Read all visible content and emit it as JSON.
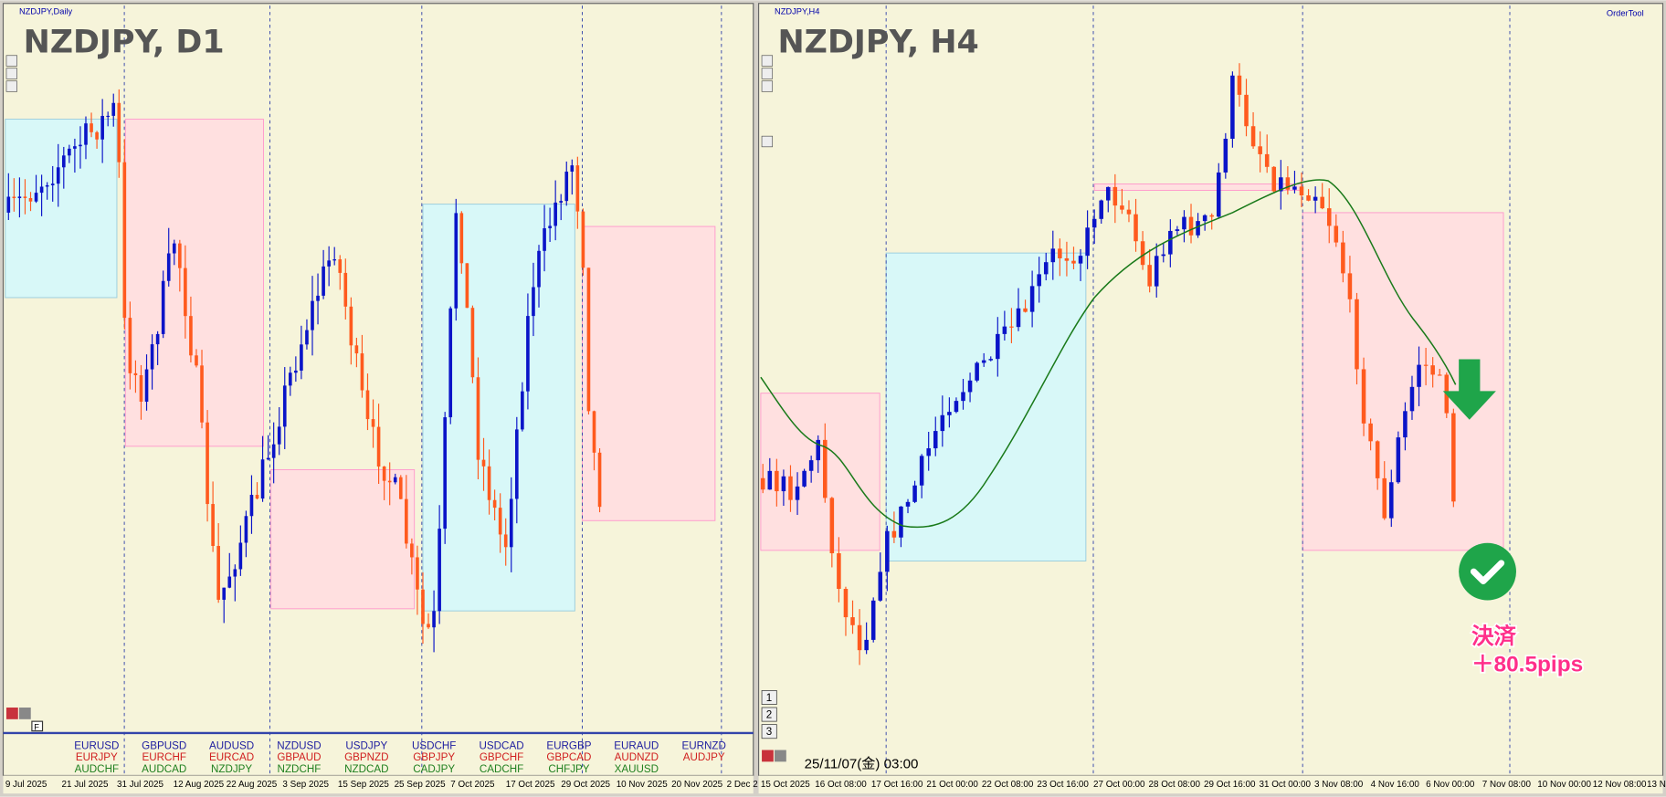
{
  "left_panel": {
    "label": "NZDJPY,Daily",
    "title": "NZDJPY, D1",
    "x_axis": [
      "9 Jul 2025",
      "21 Jul 2025",
      "31 Jul 2025",
      "12 Aug 2025",
      "22 Aug 2025",
      "3 Sep 2025",
      "15 Sep 2025",
      "25 Sep 2025",
      "7 Oct 2025",
      "17 Oct 2025",
      "29 Oct 2025",
      "10 Nov 2025",
      "20 Nov 2025",
      "2 Dec 2"
    ],
    "symbols": [
      [
        "EURUSD",
        "EURJPY",
        "AUDCHF"
      ],
      [
        "GBPUSD",
        "EURCHF",
        "AUDCAD"
      ],
      [
        "AUDUSD",
        "EURCAD",
        "NZDJPY"
      ],
      [
        "NZDUSD",
        "GBPAUD",
        "NZDCHF"
      ],
      [
        "USDJPY",
        "GBPNZD",
        "NZDCAD"
      ],
      [
        "USDCHF",
        "GBPJPY",
        "CADJPY"
      ],
      [
        "USDCAD",
        "GBPCHF",
        "CADCHF"
      ],
      [
        "EURGBP",
        "GBPCAD",
        "CHFJPY"
      ],
      [
        "EURAUD",
        "AUDNZD",
        "XAUUSD"
      ],
      [
        "EURNZD",
        "AUDJPY"
      ]
    ],
    "button": "F"
  },
  "right_panel": {
    "label": "NZDJPY,H4",
    "title": "NZDJPY, H4",
    "order_tool": "OrderTool",
    "timestamp": "25/11/07(金) 03:00",
    "buttons": [
      "1",
      "2",
      "3"
    ],
    "x_axis": [
      "15 Oct 2025",
      "16 Oct 08:00",
      "17 Oct 16:00",
      "21 Oct 00:00",
      "22 Oct 08:00",
      "23 Oct 16:00",
      "27 Oct 00:00",
      "28 Oct 08:00",
      "29 Oct 16:00",
      "31 Oct 00:00",
      "3 Nov 08:00",
      "4 Nov 16:00",
      "6 Nov 00:00",
      "7 Nov 08:00",
      "10 Nov 00:00",
      "12 Nov 08:00",
      "13 N"
    ],
    "annotation": {
      "line1": "決済",
      "line2": "＋80.5pips"
    }
  }
}
